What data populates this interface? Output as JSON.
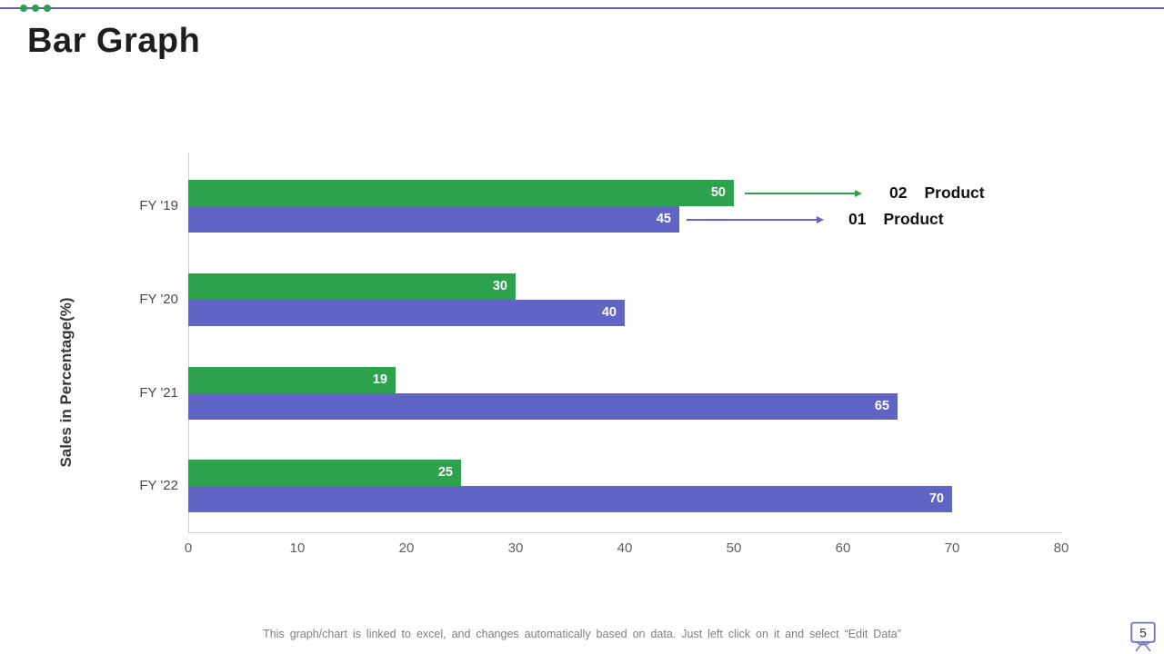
{
  "slide": {
    "title": "Bar Graph",
    "page_number": "5",
    "footer_note": "This graph/chart is linked to excel, and changes automatically based on data. Just left click on it and select “Edit Data”"
  },
  "colors": {
    "accent_line": "#5b63ab",
    "accent_dot": "#2f9e4e",
    "series_green": "#2ca24c",
    "series_purple": "#6065c5",
    "badge_outline": "#6b74b8"
  },
  "chart_data": {
    "type": "bar",
    "orientation": "horizontal",
    "title": "",
    "xlabel": "",
    "ylabel": "Sales in Percentage(%)",
    "xlim": [
      0,
      80
    ],
    "x_ticks": [
      "0",
      "10",
      "20",
      "30",
      "40",
      "50",
      "60",
      "70",
      "80"
    ],
    "categories": [
      "FY '19",
      "FY '20",
      "FY '21",
      "FY '22"
    ],
    "series": [
      {
        "name": "02 Product",
        "color": "#2ca24c",
        "values": [
          50,
          30,
          19,
          25
        ]
      },
      {
        "name": "01 Product",
        "color": "#6065c5",
        "values": [
          45,
          40,
          65,
          70
        ]
      }
    ],
    "legend": {
      "position": "right-annotated",
      "items": [
        {
          "prefix": "02",
          "label": "Product"
        },
        {
          "prefix": "01",
          "label": "Product"
        }
      ]
    },
    "value_labels_shown": true,
    "grid": false
  }
}
